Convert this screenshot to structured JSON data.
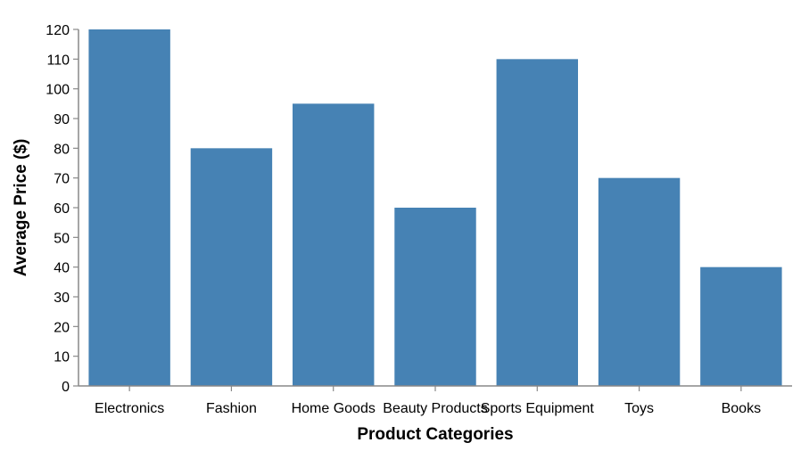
{
  "chart_data": {
    "type": "bar",
    "title": "",
    "xlabel": "Product Categories",
    "ylabel": "Average Price ($)",
    "categories": [
      "Electronics",
      "Fashion",
      "Home Goods",
      "Beauty Products",
      "Sports Equipment",
      "Toys",
      "Books"
    ],
    "values": [
      120,
      80,
      95,
      60,
      110,
      70,
      40
    ],
    "ylim": [
      0,
      120
    ],
    "yticks": [
      0,
      10,
      20,
      30,
      40,
      50,
      60,
      70,
      80,
      90,
      100,
      110,
      120
    ],
    "grid": false,
    "legend": "none",
    "bar_color": "#4682b4"
  }
}
